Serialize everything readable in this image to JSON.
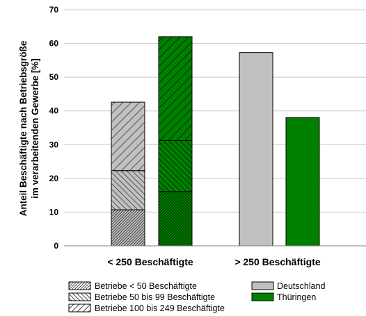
{
  "chart_data": {
    "type": "bar",
    "title": "",
    "ylabel_line1": "Anteil Beschäftigte nach Betriebsgröße",
    "ylabel_line2": "im verarbeitenden Gewerbe [%]",
    "ylim": [
      0,
      70
    ],
    "yticks": [
      0,
      10,
      20,
      30,
      40,
      50,
      60,
      70
    ],
    "grid": true,
    "categories": [
      "< 250 Beschäftigte",
      "> 250 Beschäftigte"
    ],
    "colors": {
      "Deutschland": "#c0c0c0",
      "Thüringen": "#008000"
    },
    "series": [
      {
        "name": "Deutschland",
        "category": "< 250 Beschäftigte",
        "stack": [
          {
            "size": "Betriebe < 50 Beschäftigte",
            "value": 10.7
          },
          {
            "size": "Betriebe 50 bis 99 Beschäftigte",
            "value": 11.6
          },
          {
            "size": "Betriebe 100 bis 249 Beschäftigte",
            "value": 20.3
          }
        ]
      },
      {
        "name": "Thüringen",
        "category": "< 250 Beschäftigte",
        "stack": [
          {
            "size": "Betriebe < 50 Beschäftigte",
            "value": 16.1
          },
          {
            "size": "Betriebe 50 bis 99 Beschäftigte",
            "value": 15.1
          },
          {
            "size": "Betriebe 100 bis 249 Beschäftigte",
            "value": 30.8
          }
        ]
      },
      {
        "name": "Deutschland",
        "category": "> 250 Beschäftigte",
        "value": 57.3
      },
      {
        "name": "Thüringen",
        "category": "> 250 Beschäftigte",
        "value": 38.0
      }
    ],
    "legend": {
      "placement": "bottom",
      "patterns": [
        "Betriebe < 50 Beschäftigte",
        "Betriebe 50 bis 99 Beschäftigte",
        "Betriebe 100 bis 249 Beschäftigte"
      ],
      "regions": [
        "Deutschland",
        "Thüringen"
      ]
    }
  }
}
